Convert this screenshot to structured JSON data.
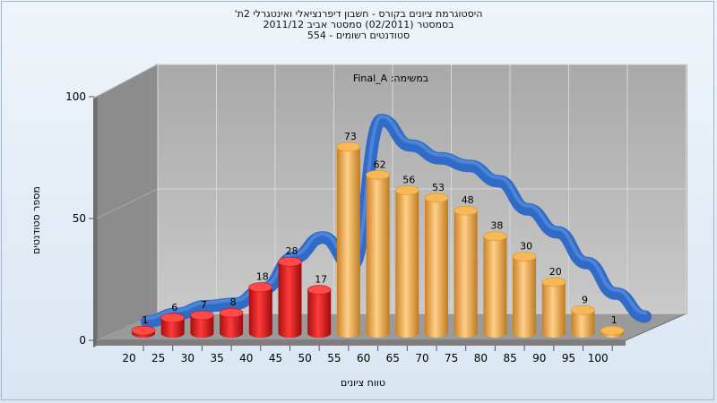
{
  "title_lines": [
    "היסטוגרמת ציונים בקורס - חשבון דיפרנציאלי ואינטגרלי 2ת'",
    "בסמסטר  (02/2011)  סמסטר אביב 2011/12",
    "סטודנטים רשומים - 554"
  ],
  "chart_data": {
    "type": "bar",
    "title": "היסטוגרמת ציונים בקורס - חשבון דיפרנציאלי ואינטגרלי 2ת'",
    "annotation": "במשימה: Final_A",
    "xlabel": "טווח ציונים",
    "ylabel": "מספר סטודנטים",
    "ylim": [
      0,
      100
    ],
    "yticks": [
      0,
      50,
      100
    ],
    "categories": [
      "20",
      "25",
      "30",
      "35",
      "40",
      "45",
      "50",
      "55",
      "60",
      "65",
      "70",
      "75",
      "80",
      "85",
      "90",
      "95",
      "100"
    ],
    "bar_values": [
      1,
      6,
      7,
      8,
      18,
      28,
      17,
      73,
      62,
      56,
      53,
      48,
      38,
      30,
      20,
      9,
      1
    ],
    "bar_colors": [
      "red",
      "red",
      "red",
      "red",
      "red",
      "red",
      "red",
      "orange",
      "orange",
      "orange",
      "orange",
      "orange",
      "orange",
      "orange",
      "orange",
      "orange",
      "orange"
    ],
    "trend_line": [
      1,
      4,
      7,
      8,
      14,
      26,
      34,
      23,
      80,
      70,
      65,
      62,
      56,
      45,
      36,
      24,
      12,
      3
    ],
    "grid": true,
    "legend": "none"
  },
  "colors": {
    "fail_bar": "#e11b1b",
    "pass_bar": "#f0a437",
    "trend": "#2f6bc7",
    "plot_back": "#b8b8b8",
    "plot_side": "#8a8a8a"
  }
}
